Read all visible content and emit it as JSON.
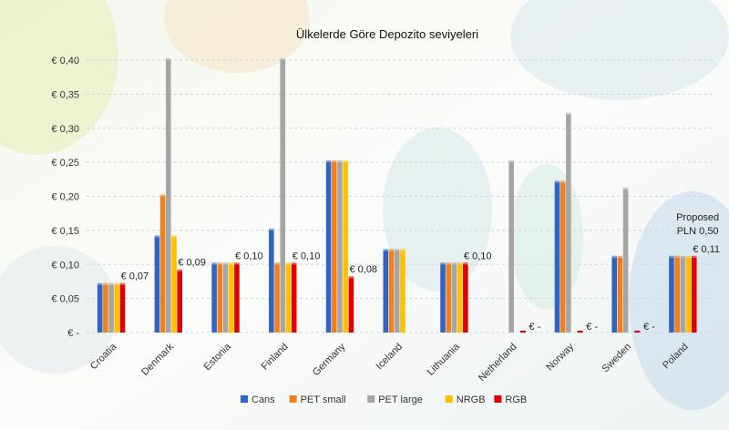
{
  "chart_data": {
    "type": "bar",
    "title": "Ülkelerde Göre Depozito seviyeleri",
    "categories": [
      "Croatia",
      "Denmark",
      "Estonia",
      "Finland",
      "Germany",
      "Iceland",
      "Lithuania",
      "Netherland",
      "Norway",
      "Sweden",
      "Poland"
    ],
    "series": [
      {
        "name": "Cans",
        "color": "#2E64C4",
        "values": [
          0.07,
          0.14,
          0.1,
          0.15,
          0.25,
          0.12,
          0.1,
          0,
          0.22,
          0.11,
          0.11
        ]
      },
      {
        "name": "PET small",
        "color": "#F07F1E",
        "values": [
          0.07,
          0.2,
          0.1,
          0.1,
          0.25,
          0.12,
          0.1,
          0,
          0.22,
          0.11,
          0.11
        ]
      },
      {
        "name": "PET large",
        "color": "#A5A5A5",
        "values": [
          0.07,
          0.4,
          0.1,
          0.4,
          0.25,
          0.12,
          0.1,
          0.25,
          0.32,
          0.21,
          0.11
        ]
      },
      {
        "name": "NRGB",
        "color": "#FFC000",
        "values": [
          0.07,
          0.14,
          0.1,
          0.1,
          0.25,
          0.12,
          0.1,
          0,
          0,
          0,
          0.11
        ]
      },
      {
        "name": "RGB",
        "color": "#E00000",
        "values": [
          0.07,
          0.09,
          0.1,
          0.1,
          0.08,
          0,
          0.1,
          0,
          0,
          0,
          0.11
        ]
      }
    ],
    "ylim": [
      0,
      0.4
    ],
    "yticks": [
      "€ -",
      "€ 0,05",
      "€ 0,10",
      "€ 0,15",
      "€ 0,20",
      "€ 0,25",
      "€ 0,30",
      "€ 0,35",
      "€ 0,40"
    ],
    "grid": true,
    "legend": "bottom",
    "data_labels": [
      {
        "category": "Croatia",
        "text": "€ 0,07",
        "value": 0.07
      },
      {
        "category": "Denmark",
        "text": "€ 0,09",
        "value": 0.09
      },
      {
        "category": "Estonia",
        "text": "€ 0,10",
        "value": 0.1
      },
      {
        "category": "Finland",
        "text": "€ 0,10",
        "value": 0.1
      },
      {
        "category": "Germany",
        "text": "€ 0,08",
        "value": 0.08
      },
      {
        "category": "Lithuania",
        "text": "€ 0,10",
        "value": 0.1
      },
      {
        "category": "Netherland",
        "text": "€ -",
        "value": 0
      },
      {
        "category": "Norway",
        "text": "€ -",
        "value": 0
      },
      {
        "category": "Sweden",
        "text": "€ -",
        "value": 0
      },
      {
        "category": "Poland",
        "text": "€ 0,11",
        "value": 0.11
      }
    ],
    "annotations": [
      {
        "category": "Poland",
        "lines": [
          "Proposed",
          "PLN 0,50"
        ]
      }
    ]
  }
}
